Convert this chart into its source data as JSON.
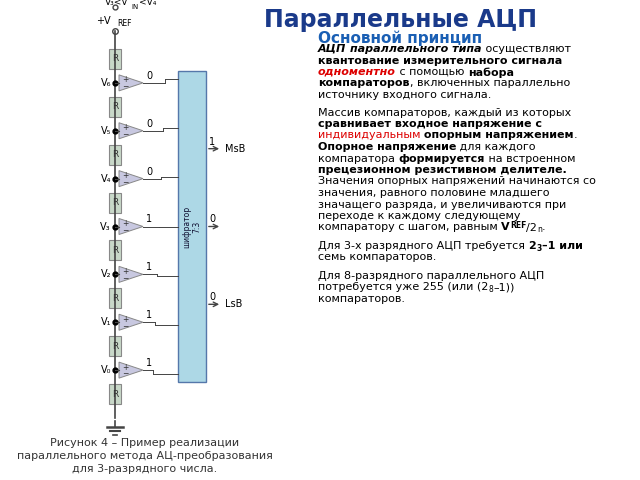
{
  "title": "Параллельные АЦП",
  "title_color": "#1a3a8a",
  "title_fontsize": 17,
  "section_title": "Основной принцип",
  "section_title_color": "#1a5fb4",
  "section_title_fontsize": 11,
  "bg_color": "#ffffff",
  "caption": "Рисунок 4 – Пример реализации\nпараллельного метода АЦ-преобразования\nдля 3-разрядного числа.",
  "caption_fontsize": 8,
  "caption_color": "#333333",
  "wire_color": "#444444",
  "resistor_fill": "#c8d8c8",
  "resistor_edge": "#888888",
  "comparator_fill": "#c8c8e0",
  "comparator_edge": "#888888",
  "encoder_fill": "#add8e6",
  "encoder_edge": "#5577aa",
  "label_color": "#000000",
  "comp_outputs": [
    "0",
    "0",
    "0",
    "1",
    "1",
    "1",
    "1"
  ],
  "v_labels": [
    "V₆",
    "V₅",
    "V₄",
    "V₃",
    "V₂",
    "V₁",
    "V₀"
  ],
  "enc_outputs": [
    "1",
    "0",
    "0"
  ],
  "enc_output_labels": [
    "MsB",
    "",
    "LsB"
  ]
}
